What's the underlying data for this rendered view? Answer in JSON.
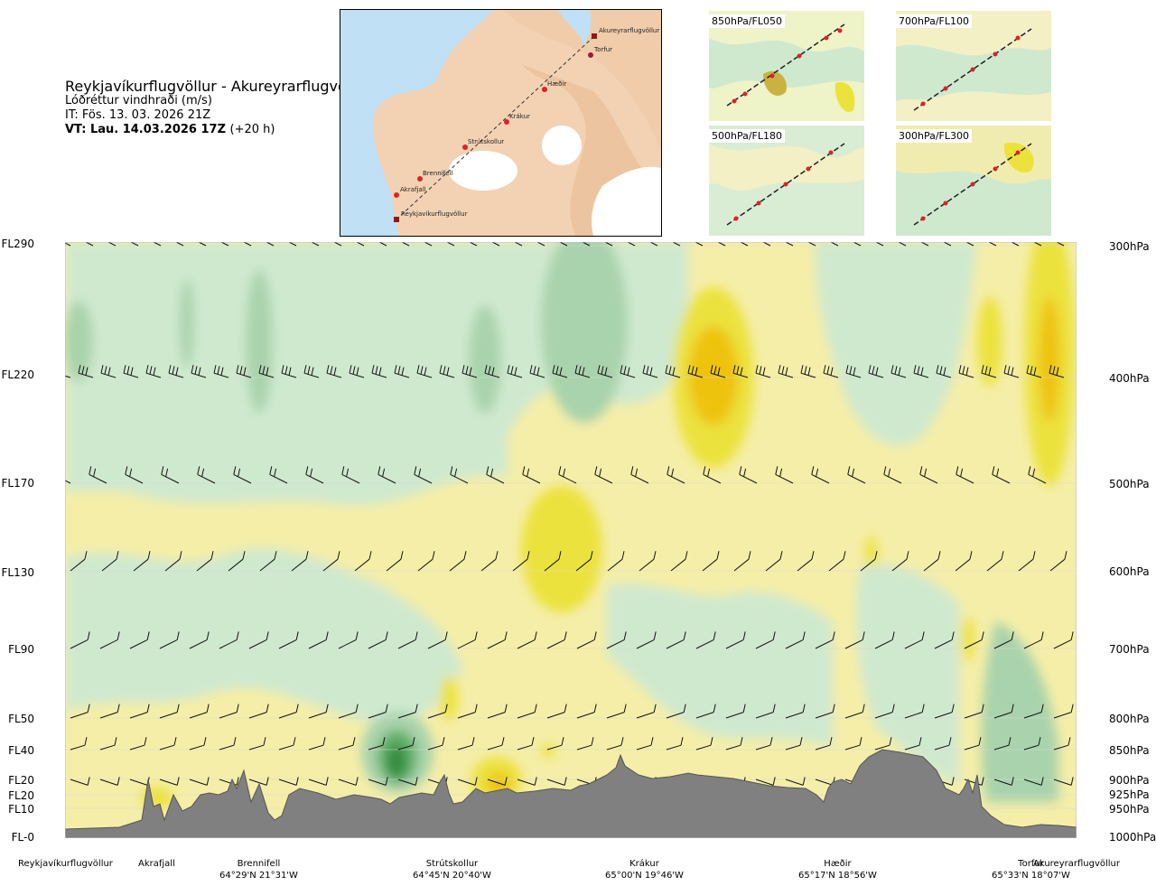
{
  "header": {
    "route": "Reykjavíkurflugvöllur - Akureyrarflugvöllur",
    "variable": "Lóðréttur vindhraði (m/s)",
    "issue_time": "IT: Fös. 13. 03. 2026 21Z",
    "valid_time_label": "VT: Lau. 14.03.2026 17Z",
    "lead_time": "(+20 h)"
  },
  "route_map": {
    "waypoints": [
      {
        "name": "Reykjavíkurflugvöllur"
      },
      {
        "name": "Akrafjall"
      },
      {
        "name": "Brennifell"
      },
      {
        "name": "Strútskollur"
      },
      {
        "name": "Krákur"
      },
      {
        "name": "Hæðir"
      },
      {
        "name": "Torfur"
      },
      {
        "name": "Akureyrarflugvöllur"
      }
    ],
    "colors": {
      "land": "#f3d2b3",
      "water": "#bfe0f5",
      "glacier": "#ffffff",
      "route": "#333333",
      "marker": "#e0202a"
    }
  },
  "level_maps": [
    {
      "label": "850hPa/FL050"
    },
    {
      "label": "700hPa/FL100"
    },
    {
      "label": "500hPa/FL180"
    },
    {
      "label": "300hPa/FL300"
    }
  ],
  "left_axis": [
    "FL290",
    "FL220",
    "FL170",
    "FL130",
    "FL90",
    "FL50",
    "FL40",
    "FL20",
    "FL20",
    "FL10",
    "FL-0"
  ],
  "right_axis": [
    "300hPa",
    "400hPa",
    "500hPa",
    "600hPa",
    "700hPa",
    "800hPa",
    "850hPa",
    "900hPa",
    "925hPa",
    "950hPa",
    "1000hPa"
  ],
  "stations": [
    {
      "name": "Reykjavíkurflugvöllur",
      "coord": ""
    },
    {
      "name": "Akrafjall",
      "coord": ""
    },
    {
      "name": "Brennifell",
      "coord": "64°29'N 21°31'W"
    },
    {
      "name": "Strútskollur",
      "coord": "64°45'N 20°40'W"
    },
    {
      "name": "Krákur",
      "coord": "65°00'N 19°46'W"
    },
    {
      "name": "Hæðir",
      "coord": "65°17'N 18°56'W"
    },
    {
      "name": "Torfur",
      "coord": "65°33'N 18°07'W"
    },
    {
      "name": "Akureyrarflugvöllur",
      "coord": ""
    }
  ],
  "colors": {
    "strong_down": "#2f8a3a",
    "down": "#a9d3ac",
    "weak_down": "#cfe9cf",
    "neutral": "#f5f9e6",
    "weak_up": "#f5eea8",
    "up": "#ece23c",
    "strong_up": "#eec311",
    "terrain": "#808080"
  }
}
